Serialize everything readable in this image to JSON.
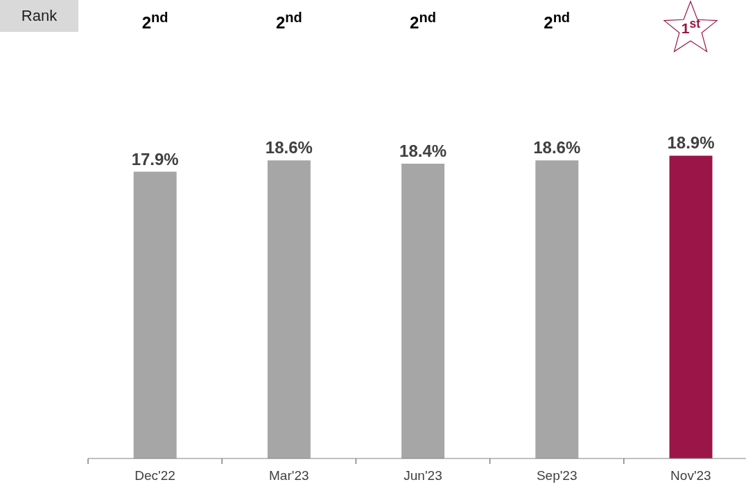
{
  "chart_data": {
    "type": "bar",
    "categories": [
      "Dec'22",
      "Mar'23",
      "Jun'23",
      "Sep'23",
      "Nov'23"
    ],
    "values": [
      17.9,
      18.6,
      18.4,
      18.6,
      18.9
    ],
    "value_labels": [
      "17.9%",
      "18.6%",
      "18.4%",
      "18.6%",
      "18.9%"
    ],
    "colors": [
      "#a6a6a6",
      "#a6a6a6",
      "#a6a6a6",
      "#a6a6a6",
      "#9b1548"
    ],
    "grid": false,
    "legend": false,
    "annotations": [
      "Rank",
      "2$^{nd}$",
      "2$^{nd}$",
      "2$^{nd}$",
      "2$^{nd}$",
      "1$^{st}$"
    ]
  }
}
